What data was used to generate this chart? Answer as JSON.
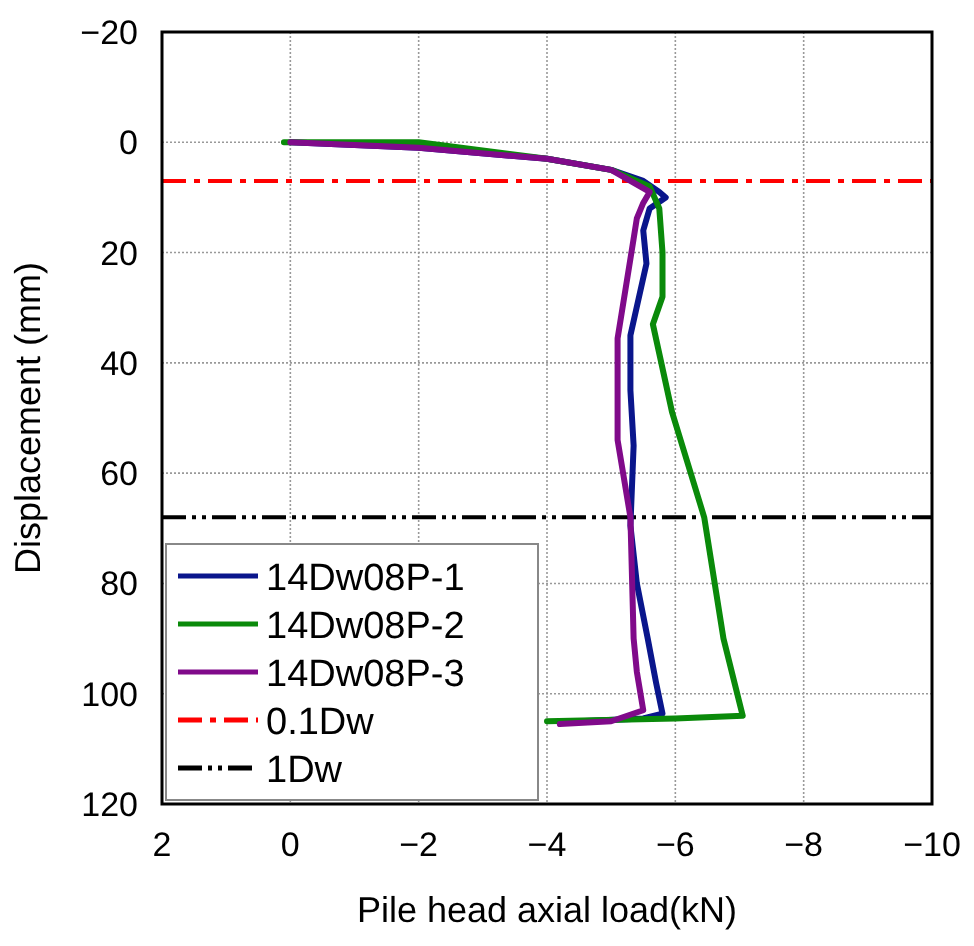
{
  "chart_data": {
    "type": "line",
    "xlabel": "Pile head axial load(kN)",
    "ylabel": "Displacement (mm)",
    "xlim": [
      2,
      -10
    ],
    "xticks": [
      2,
      0,
      {
        "value": -2,
        "label": "−2"
      },
      {
        "value": -4,
        "label": "−4"
      },
      {
        "value": -6,
        "label": "−6"
      },
      {
        "value": -8,
        "label": "−8"
      },
      {
        "value": -10,
        "label": "−10"
      }
    ],
    "ylim": [
      120,
      -20
    ],
    "yticks": [
      {
        "value": -20,
        "label": "−20"
      },
      0,
      20,
      40,
      60,
      80,
      100,
      120
    ],
    "grid": true,
    "legend": "bottom left",
    "marker": "none",
    "line_style": "solid",
    "series": [
      {
        "name": "14Dw08P-1",
        "color": "#0a168c",
        "x": [
          0,
          -2,
          -4,
          -5,
          -5.5,
          -5.75,
          -5.85,
          -5.6,
          -5.5,
          -5.55,
          -5.3,
          -5.3,
          -5.35,
          -5.3,
          -5.4,
          -5.57,
          -5.7,
          -5.8,
          -5.5,
          -4.5
        ],
        "values": [
          0,
          1,
          3,
          5,
          7,
          9,
          10,
          12,
          16,
          22,
          35,
          45,
          55,
          69.5,
          80,
          90,
          98,
          103.6,
          104.5,
          105
        ]
      },
      {
        "name": "14Dw08P-2",
        "color": "#0a8a0a",
        "x": [
          0.1,
          -2,
          -4,
          -5,
          -5.6,
          -5.75,
          -5.8,
          -5.8,
          -5.65,
          -5.95,
          -6.45,
          -6.75,
          -7.05,
          -6,
          -4
        ],
        "values": [
          0,
          0,
          3,
          5,
          8,
          12,
          20,
          28,
          33,
          49,
          68,
          90,
          104,
          104.5,
          105
        ]
      },
      {
        "name": "14Dw08P-3",
        "color": "#800a8a",
        "x": [
          0,
          -2,
          -4,
          -5,
          -5.6,
          -5.5,
          -5.4,
          -5.35,
          -5.1,
          -5.1,
          -5.3,
          -5.35,
          -5.4,
          -5.5,
          -5,
          -4.2
        ],
        "values": [
          0,
          1,
          3,
          5,
          9,
          11,
          13.8,
          17.5,
          35.6,
          54,
          68,
          90,
          96,
          103,
          105,
          105.5
        ]
      }
    ],
    "ref_lines": [
      {
        "axis": "y",
        "value": 7,
        "label": "0.1Dw",
        "color": "#ff0000",
        "line_style": "dashed"
      },
      {
        "axis": "y",
        "value": 68,
        "label": "1Dw",
        "color": "#000000",
        "line_style": "dotted"
      }
    ]
  }
}
